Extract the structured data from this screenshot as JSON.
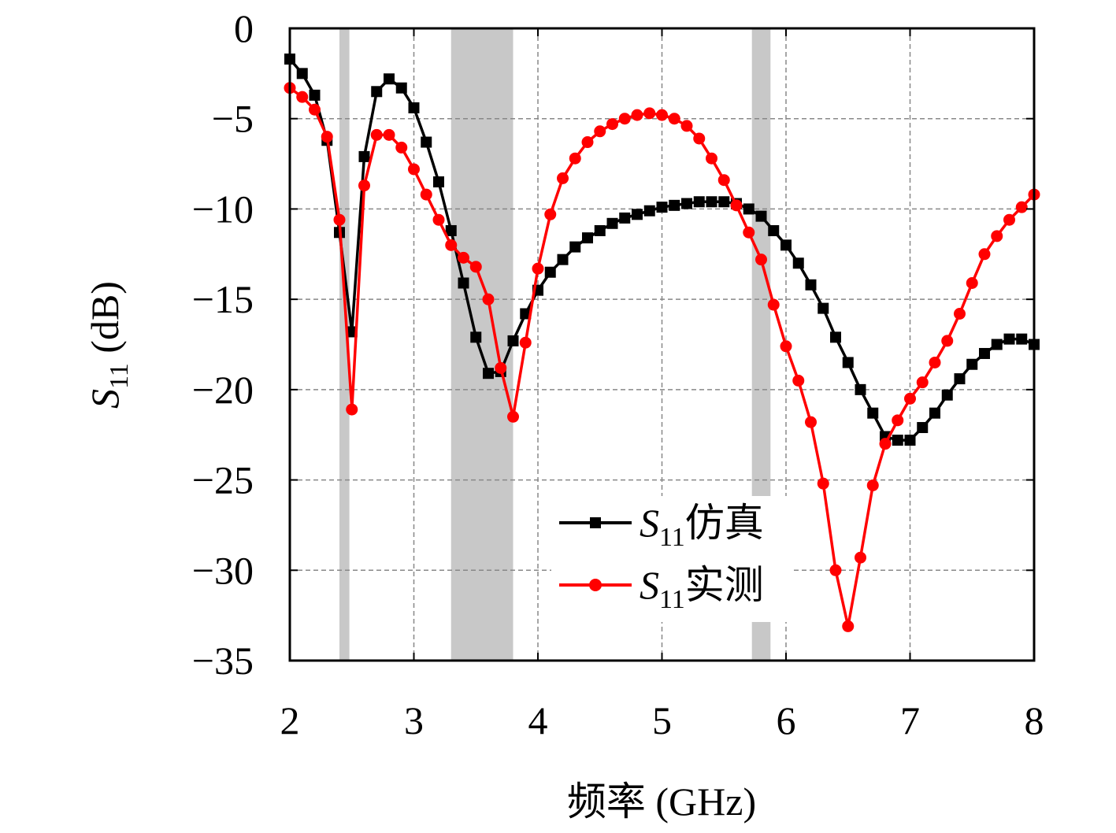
{
  "chart_data": {
    "type": "line",
    "title": "",
    "xlabel": "频率 (GHz)",
    "ylabel": "S11 (dB)",
    "ylabel_main": "S",
    "ylabel_sub": "11",
    "ylabel_unit": " (dB)",
    "xlim": [
      2,
      8
    ],
    "ylim": [
      -35,
      0
    ],
    "xticks": [
      2,
      3,
      4,
      5,
      6,
      7,
      8
    ],
    "yticks": [
      0,
      -5,
      -10,
      -15,
      -20,
      -25,
      -30,
      -35
    ],
    "xtick_labels": [
      "2",
      "3",
      "4",
      "5",
      "6",
      "7",
      "8"
    ],
    "ytick_labels": [
      "0",
      "−5",
      "−10",
      "−15",
      "−20",
      "−25",
      "−30",
      "−35"
    ],
    "grid": true,
    "legend_position": "bottom-center",
    "shaded_bands": [
      [
        2.4,
        2.48
      ],
      [
        3.3,
        3.8
      ],
      [
        5.725,
        5.875
      ]
    ],
    "series": [
      {
        "name": "S11仿真",
        "name_main": "S",
        "name_sub": "11",
        "name_suffix": "仿真",
        "color": "#000000",
        "marker": "square",
        "x": [
          2.0,
          2.1,
          2.2,
          2.3,
          2.4,
          2.5,
          2.6,
          2.7,
          2.8,
          2.9,
          3.0,
          3.1,
          3.2,
          3.3,
          3.4,
          3.5,
          3.6,
          3.7,
          3.8,
          3.9,
          4.0,
          4.1,
          4.2,
          4.3,
          4.4,
          4.5,
          4.6,
          4.7,
          4.8,
          4.9,
          5.0,
          5.1,
          5.2,
          5.3,
          5.4,
          5.5,
          5.6,
          5.7,
          5.8,
          5.9,
          6.0,
          6.1,
          6.2,
          6.3,
          6.4,
          6.5,
          6.6,
          6.7,
          6.8,
          6.9,
          7.0,
          7.1,
          7.2,
          7.3,
          7.4,
          7.5,
          7.6,
          7.7,
          7.8,
          7.9,
          8.0
        ],
        "y": [
          -1.7,
          -2.5,
          -3.7,
          -6.2,
          -11.3,
          -16.8,
          -7.1,
          -3.5,
          -2.8,
          -3.3,
          -4.4,
          -6.3,
          -8.5,
          -11.2,
          -14.1,
          -17.1,
          -19.1,
          -19.0,
          -17.3,
          -15.8,
          -14.5,
          -13.5,
          -12.8,
          -12.1,
          -11.6,
          -11.2,
          -10.8,
          -10.5,
          -10.3,
          -10.1,
          -9.9,
          -9.8,
          -9.7,
          -9.6,
          -9.6,
          -9.6,
          -9.7,
          -10.0,
          -10.4,
          -11.2,
          -12.0,
          -13.0,
          -14.2,
          -15.5,
          -17.1,
          -18.5,
          -20.0,
          -21.3,
          -22.6,
          -22.8,
          -22.8,
          -22.1,
          -21.3,
          -20.3,
          -19.4,
          -18.6,
          -18.0,
          -17.5,
          -17.2,
          -17.2,
          -17.5
        ]
      },
      {
        "name": "S11实测",
        "name_main": "S",
        "name_sub": "11",
        "name_suffix": "实测",
        "color": "#ff0000",
        "marker": "circle",
        "x": [
          2.0,
          2.1,
          2.2,
          2.3,
          2.4,
          2.5,
          2.6,
          2.7,
          2.8,
          2.9,
          3.0,
          3.1,
          3.2,
          3.3,
          3.4,
          3.5,
          3.6,
          3.7,
          3.8,
          3.9,
          4.0,
          4.1,
          4.2,
          4.3,
          4.4,
          4.5,
          4.6,
          4.7,
          4.8,
          4.9,
          5.0,
          5.1,
          5.2,
          5.3,
          5.4,
          5.5,
          5.6,
          5.7,
          5.8,
          5.9,
          6.0,
          6.1,
          6.2,
          6.3,
          6.4,
          6.5,
          6.6,
          6.7,
          6.8,
          6.9,
          7.0,
          7.1,
          7.2,
          7.3,
          7.4,
          7.5,
          7.6,
          7.7,
          7.8,
          7.9,
          8.0
        ],
        "y": [
          -3.3,
          -3.8,
          -4.5,
          -6.0,
          -10.6,
          -21.1,
          -8.7,
          -5.9,
          -5.9,
          -6.6,
          -7.8,
          -9.2,
          -10.6,
          -12.0,
          -12.7,
          -13.2,
          -15.0,
          -18.8,
          -21.5,
          -17.4,
          -13.3,
          -10.3,
          -8.3,
          -7.2,
          -6.3,
          -5.7,
          -5.3,
          -5.0,
          -4.8,
          -4.7,
          -4.8,
          -5.0,
          -5.4,
          -6.1,
          -7.2,
          -8.4,
          -9.8,
          -11.3,
          -12.8,
          -15.3,
          -17.6,
          -19.5,
          -21.8,
          -25.2,
          -30.0,
          -33.1,
          -29.3,
          -25.3,
          -23.0,
          -21.7,
          -20.5,
          -19.6,
          -18.5,
          -17.3,
          -15.8,
          -14.1,
          -12.5,
          -11.5,
          -10.6,
          -9.9,
          -9.2
        ]
      }
    ]
  }
}
